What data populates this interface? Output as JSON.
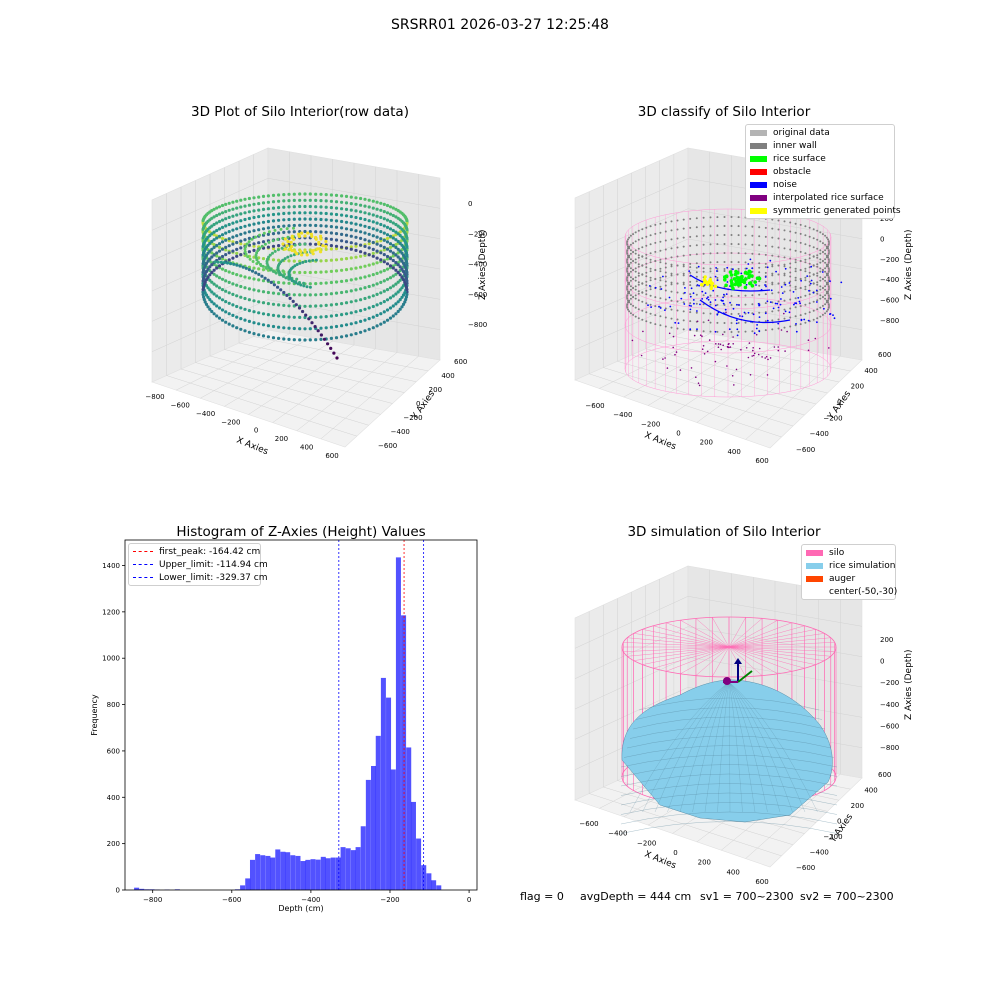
{
  "suptitle": "SRSRR01 2026-03-27 12:25:48",
  "chart_data": [
    {
      "type": "scatter",
      "subtype": "3d",
      "title": "3D Plot of Silo Interior(row data)",
      "xlabel": "X Axies",
      "ylabel": "Y Axies",
      "zlabel": "Z Axies (Depth)",
      "x_ticks": [
        "−800",
        "−600",
        "−400",
        "−200",
        "0",
        "200",
        "400",
        "600"
      ],
      "y_ticks": [
        "−600",
        "−400",
        "−200",
        "0",
        "200",
        "400",
        "600"
      ],
      "z_ticks": [
        "0",
        "−200",
        "−400",
        "−600",
        "−800"
      ],
      "colormap": "viridis",
      "grid": true
    },
    {
      "type": "scatter",
      "subtype": "3d",
      "title": "3D classify of Silo Interior",
      "xlabel": "X Axies",
      "ylabel": "Y Axies",
      "zlabel": "Z Axies (Depth)",
      "x_ticks": [
        "−600",
        "−400",
        "−200",
        "0",
        "200",
        "400",
        "600"
      ],
      "y_ticks": [
        "−600",
        "−400",
        "−200",
        "0",
        "200",
        "400",
        "600"
      ],
      "z_ticks": [
        "200",
        "0",
        "−200",
        "−400",
        "−600",
        "−800"
      ],
      "legend_position": "top-right",
      "legend": [
        {
          "label": "original data",
          "color": "#b4b4b4"
        },
        {
          "label": "inner wall",
          "color": "#7f7f7f"
        },
        {
          "label": "rice surface",
          "color": "#00ff00"
        },
        {
          "label": "obstacle",
          "color": "#ff0000"
        },
        {
          "label": "noise",
          "color": "#0000ff"
        },
        {
          "label": "interpolated rice surface",
          "color": "#800080"
        },
        {
          "label": "symmetric generated points",
          "color": "#ffff00"
        }
      ],
      "grid": true
    },
    {
      "type": "bar",
      "subtype": "histogram",
      "title": "Histogram of Z-Axies (Height) Values",
      "xlabel": "Depth (cm)",
      "ylabel": "Frequency",
      "xlim": [
        -870,
        20
      ],
      "ylim": [
        0,
        1510
      ],
      "x_ticks": [
        -800,
        -600,
        -400,
        -200,
        0
      ],
      "x_tick_labels": [
        "−800",
        "−600",
        "−400",
        "−200",
        "0"
      ],
      "y_ticks": [
        0,
        200,
        400,
        600,
        800,
        1000,
        1200,
        1400
      ],
      "bar_color": "#0000ff",
      "bin_width": 12.7,
      "bins": [
        [
          -847,
          10
        ],
        [
          -834,
          5
        ],
        [
          -821,
          3
        ],
        [
          -808,
          3
        ],
        [
          -795,
          2
        ],
        [
          -770,
          2
        ],
        [
          -744,
          3
        ],
        [
          -592,
          3
        ],
        [
          -579,
          20
        ],
        [
          -566,
          50
        ],
        [
          -554,
          130
        ],
        [
          -541,
          155
        ],
        [
          -528,
          150
        ],
        [
          -515,
          147
        ],
        [
          -503,
          140
        ],
        [
          -490,
          175
        ],
        [
          -477,
          165
        ],
        [
          -465,
          163
        ],
        [
          -452,
          150
        ],
        [
          -439,
          147
        ],
        [
          -426,
          125
        ],
        [
          -414,
          130
        ],
        [
          -401,
          133
        ],
        [
          -388,
          131
        ],
        [
          -375,
          143
        ],
        [
          -363,
          137
        ],
        [
          -350,
          140
        ],
        [
          -337,
          140
        ],
        [
          -325,
          185
        ],
        [
          -312,
          180
        ],
        [
          -299,
          172
        ],
        [
          -287,
          185
        ],
        [
          -274,
          275
        ],
        [
          -261,
          475
        ],
        [
          -248,
          535
        ],
        [
          -236,
          665
        ],
        [
          -223,
          915
        ],
        [
          -210,
          830
        ],
        [
          -198,
          520
        ],
        [
          -185,
          1435
        ],
        [
          -172,
          1185
        ],
        [
          -159,
          615
        ],
        [
          -147,
          380
        ],
        [
          -134,
          222
        ],
        [
          -121,
          107
        ],
        [
          -108,
          72
        ],
        [
          -96,
          42
        ],
        [
          -83,
          20
        ]
      ],
      "vlines": [
        {
          "label": "first_peak: -164.42 cm",
          "value": -164.42,
          "color": "#ff0000"
        },
        {
          "label": "Upper_limit: -114.94 cm",
          "value": -114.94,
          "color": "#0000ff"
        },
        {
          "label": "Lower_limit: -329.37 cm",
          "value": -329.37,
          "color": "#0000ff"
        }
      ],
      "legend_position": "top-left"
    },
    {
      "type": "area",
      "subtype": "3d-surface",
      "title": "3D simulation of Silo Interior",
      "xlabel": "X Axies",
      "ylabel": "Y Axies",
      "zlabel": "Z Axies (Depth)",
      "x_ticks": [
        "−600",
        "−400",
        "−200",
        "0",
        "200",
        "400",
        "600"
      ],
      "y_ticks": [
        "−600",
        "−400",
        "−200",
        "0",
        "200",
        "400",
        "600"
      ],
      "z_ticks": [
        "200",
        "0",
        "−200",
        "−400",
        "−600",
        "−800"
      ],
      "legend_position": "top-right",
      "legend": [
        {
          "label": "silo",
          "color": "#ff69b4"
        },
        {
          "label": "rice simulation",
          "color": "#87ceeb"
        },
        {
          "label": "auger",
          "color": "#ff4500"
        },
        {
          "label": "center(-50,-30)",
          "color": "#ffffff"
        }
      ],
      "grid": true
    }
  ],
  "footer": {
    "flag": "flag = 0",
    "avg_depth": "avgDepth = 444 cm",
    "sv1": "sv1 = 700~2300",
    "sv2": "sv2 = 700~2300"
  }
}
